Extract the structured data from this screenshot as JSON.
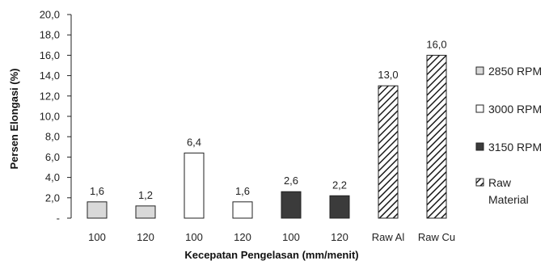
{
  "chart_data": {
    "type": "bar",
    "xlabel": "Kecepatan Pengelasan (mm/menit)",
    "ylabel": "Persen Elongasi (%)",
    "ylim": [
      0,
      20
    ],
    "y_ticks": [
      "-",
      "2,0",
      "4,0",
      "6,0",
      "8,0",
      "10,0",
      "12,0",
      "14,0",
      "16,0",
      "18,0",
      "20,0"
    ],
    "categories": [
      "100",
      "120",
      "100",
      "120",
      "100",
      "120",
      "Raw Al",
      "Raw Cu"
    ],
    "bars": [
      {
        "category": "100",
        "value": 1.6,
        "label": "1,6",
        "series": 0
      },
      {
        "category": "120",
        "value": 1.2,
        "label": "1,2",
        "series": 0
      },
      {
        "category": "100",
        "value": 6.4,
        "label": "6,4",
        "series": 1
      },
      {
        "category": "120",
        "value": 1.6,
        "label": "1,6",
        "series": 1
      },
      {
        "category": "100",
        "value": 2.6,
        "label": "2,6",
        "series": 2
      },
      {
        "category": "120",
        "value": 2.2,
        "label": "2,2",
        "series": 2
      },
      {
        "category": "Raw Al",
        "value": 13.0,
        "label": "13,0",
        "series": 3
      },
      {
        "category": "Raw Cu",
        "value": 16.0,
        "label": "16,0",
        "series": 3
      }
    ],
    "series": [
      {
        "name": "2850 RPM",
        "color": "#d9d9d9",
        "pattern": "solid"
      },
      {
        "name": "3000 RPM",
        "color": "#ffffff",
        "pattern": "solid"
      },
      {
        "name": "3150 RPM",
        "color": "#3b3b3b",
        "pattern": "solid"
      },
      {
        "name": "Raw Material",
        "name_lines": [
          "Raw",
          "Material"
        ],
        "color": "#ffffff",
        "pattern": "diagonal-hatch"
      }
    ],
    "legend": "right",
    "grid": false
  }
}
